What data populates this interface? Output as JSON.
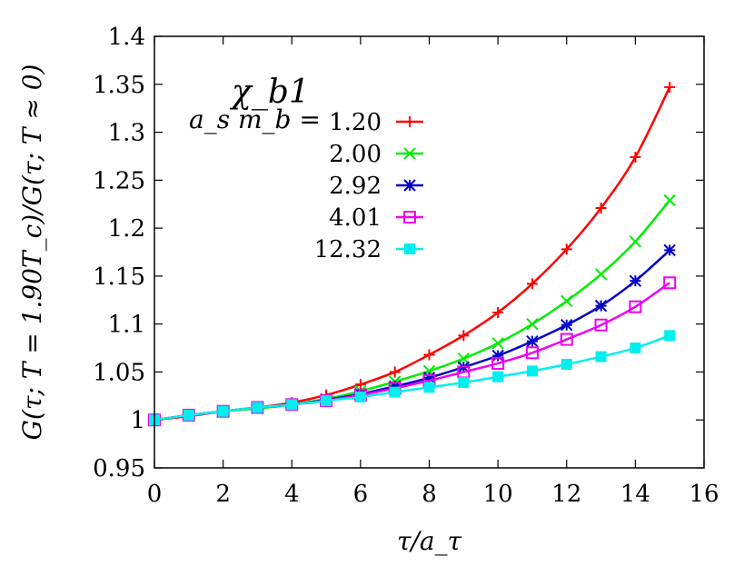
{
  "chart_data": {
    "type": "line",
    "title": "",
    "xlabel": "τ/a_τ",
    "ylabel": "G(τ; T = 1.90T_c)/G(τ; T ≈ 0)",
    "xlim": [
      0,
      16
    ],
    "ylim": [
      0.95,
      1.4
    ],
    "xticks": [
      "0",
      "2",
      "4",
      "6",
      "8",
      "10",
      "12",
      "14",
      "16"
    ],
    "yticks": [
      "0.95",
      "1",
      "1.05",
      "1.1",
      "1.15",
      "1.2",
      "1.25",
      "1.3",
      "1.35",
      "1.4"
    ],
    "grid": false,
    "legend_position": "top-left",
    "legend_title": "χ_b1",
    "legend_header": "a_s m_b =",
    "x": [
      0,
      1,
      2,
      3,
      4,
      5,
      6,
      7,
      8,
      9,
      10,
      11,
      12,
      13,
      14,
      15
    ],
    "series": [
      {
        "name": "1.20",
        "color": "#ff0000",
        "marker": "plus",
        "values": [
          1.0,
          1.004,
          1.009,
          1.013,
          1.018,
          1.026,
          1.037,
          1.05,
          1.068,
          1.088,
          1.112,
          1.142,
          1.178,
          1.221,
          1.274,
          1.347
        ]
      },
      {
        "name": "2.00",
        "color": "#00ee00",
        "marker": "cross",
        "values": [
          1.0,
          1.005,
          1.009,
          1.012,
          1.016,
          1.022,
          1.03,
          1.04,
          1.051,
          1.064,
          1.08,
          1.1,
          1.124,
          1.152,
          1.186,
          1.229
        ]
      },
      {
        "name": "2.92",
        "color": "#0000cc",
        "marker": "star",
        "values": [
          1.0,
          1.005,
          1.009,
          1.013,
          1.016,
          1.021,
          1.027,
          1.035,
          1.044,
          1.055,
          1.067,
          1.082,
          1.099,
          1.119,
          1.145,
          1.177
        ]
      },
      {
        "name": "4.01",
        "color": "#ee00ee",
        "marker": "box",
        "values": [
          1.0,
          1.005,
          1.009,
          1.013,
          1.016,
          1.02,
          1.026,
          1.033,
          1.041,
          1.05,
          1.059,
          1.07,
          1.084,
          1.099,
          1.118,
          1.143
        ]
      },
      {
        "name": "12.32",
        "color": "#00eeee",
        "marker": "filled-box",
        "values": [
          1.0,
          1.005,
          1.009,
          1.013,
          1.016,
          1.02,
          1.024,
          1.029,
          1.034,
          1.039,
          1.045,
          1.051,
          1.058,
          1.066,
          1.075,
          1.088
        ]
      }
    ]
  }
}
